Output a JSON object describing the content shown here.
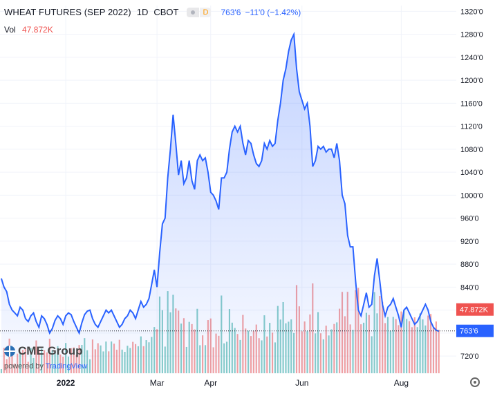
{
  "header": {
    "symbol": "WHEAT FUTURES (SEP 2022)",
    "timeframe": "1D",
    "exchange": "CBOT",
    "delayed_badge": "D",
    "last_price": "763'6",
    "change": "−11'0 (−1.42%)"
  },
  "volume": {
    "label": "Vol",
    "value": "47.872K"
  },
  "branding": {
    "name": "CME Group",
    "powered_by": "powered by",
    "provider": "TradingView"
  },
  "colors": {
    "line": "#2962ff",
    "fill": "#dce6fb",
    "vol_up": "#26a69a",
    "vol_down": "#ef5350",
    "axis_text": "#131722"
  },
  "chart_data": {
    "type": "area",
    "y_unit": "cents/bushel",
    "ylim": [
      690,
      1330
    ],
    "yticks": [
      "720'0",
      "760'0",
      "800'0",
      "840'0",
      "880'0",
      "920'0",
      "960'0",
      "1000'0",
      "1040'0",
      "1080'0",
      "1120'0",
      "1160'0",
      "1200'0",
      "1240'0",
      "1280'0",
      "1320'0"
    ],
    "yticks_values": [
      720,
      760,
      800,
      840,
      880,
      920,
      960,
      1000,
      1040,
      1080,
      1120,
      1160,
      1200,
      1240,
      1280,
      1320
    ],
    "xtick_labels": [
      "2022",
      "Mar",
      "Apr",
      "Jun",
      "Aug"
    ],
    "xtick_index": [
      24,
      58,
      78,
      112,
      149
    ],
    "price_label": "763'6",
    "price_value": 763.75,
    "volume_label": "47.872K",
    "volume_label_value": 47872,
    "close": [
      855,
      840,
      832,
      810,
      800,
      795,
      790,
      805,
      800,
      785,
      780,
      790,
      795,
      780,
      770,
      790,
      785,
      775,
      760,
      768,
      782,
      790,
      785,
      775,
      790,
      795,
      792,
      780,
      770,
      760,
      778,
      792,
      798,
      800,
      785,
      775,
      770,
      780,
      790,
      800,
      795,
      800,
      790,
      780,
      770,
      775,
      785,
      790,
      800,
      795,
      785,
      800,
      815,
      805,
      810,
      820,
      845,
      870,
      840,
      900,
      950,
      960,
      1030,
      1080,
      1140,
      1090,
      1035,
      1060,
      1020,
      1030,
      1060,
      1025,
      1010,
      1060,
      1070,
      1060,
      1065,
      1040,
      1005,
      1000,
      990,
      975,
      1030,
      1030,
      1040,
      1080,
      1110,
      1120,
      1110,
      1120,
      1090,
      1070,
      1095,
      1090,
      1070,
      1055,
      1050,
      1060,
      1090,
      1080,
      1095,
      1085,
      1090,
      1130,
      1160,
      1200,
      1220,
      1250,
      1270,
      1280,
      1220,
      1180,
      1165,
      1150,
      1160,
      1120,
      1050,
      1060,
      1085,
      1080,
      1085,
      1075,
      1080,
      1080,
      1065,
      1090,
      1060,
      1000,
      985,
      930,
      910,
      910,
      850,
      800,
      790,
      810,
      830,
      805,
      810,
      860,
      890,
      850,
      810,
      790,
      805,
      810,
      820,
      805,
      790,
      770,
      800,
      805,
      795,
      785,
      775,
      780,
      790,
      800,
      810,
      800,
      780,
      770,
      765,
      763
    ]
  }
}
